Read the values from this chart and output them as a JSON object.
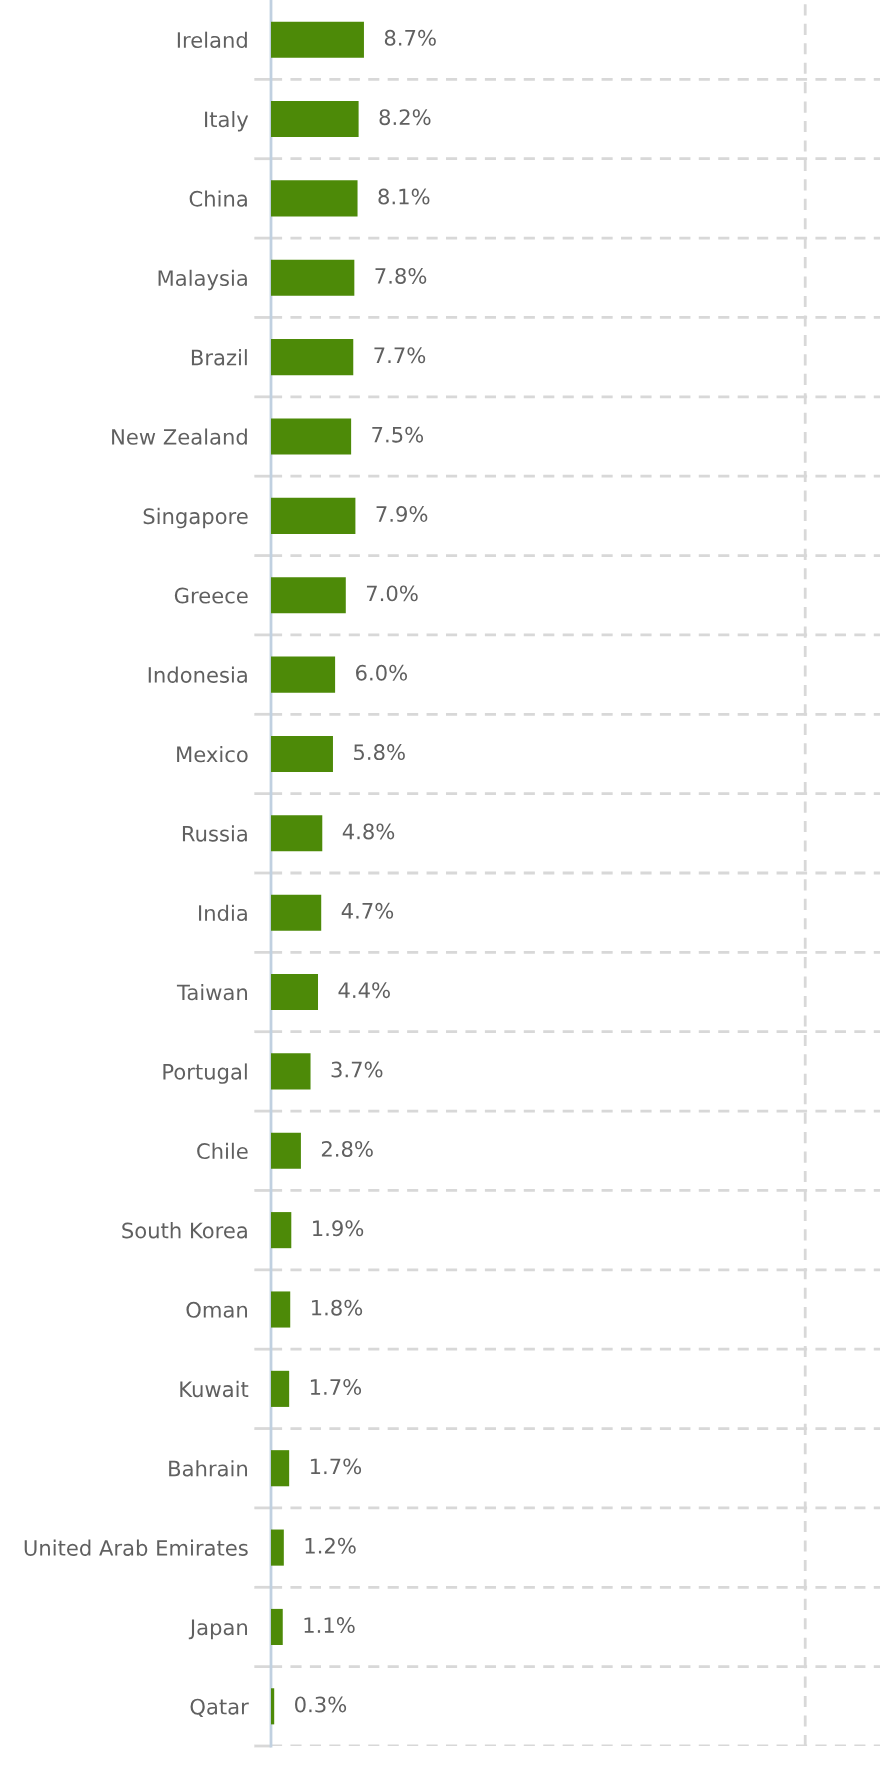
{
  "chart_data": {
    "type": "bar",
    "orientation": "horizontal",
    "categories": [
      "Ireland",
      "Italy",
      "China",
      "Malaysia",
      "Brazil",
      "New Zealand",
      "Singapore",
      "Greece",
      "Indonesia",
      "Mexico",
      "Russia",
      "India",
      "Taiwan",
      "Portugal",
      "Chile",
      "South Korea",
      "Oman",
      "Kuwait",
      "Bahrain",
      "United Arab Emirates",
      "Japan",
      "Qatar"
    ],
    "values": [
      8.7,
      8.2,
      8.1,
      7.8,
      7.7,
      7.5,
      7.9,
      7.0,
      6.0,
      5.8,
      4.8,
      4.7,
      4.4,
      3.7,
      2.8,
      1.9,
      1.8,
      1.7,
      1.7,
      1.2,
      1.1,
      0.3
    ],
    "value_labels": [
      "8.7%",
      "8.2%",
      "8.1%",
      "7.8%",
      "7.7%",
      "7.5%",
      "7.9%",
      "7.0%",
      "6.0%",
      "5.8%",
      "4.8%",
      "4.7%",
      "4.4%",
      "3.7%",
      "2.8%",
      "1.9%",
      "1.8%",
      "1.7%",
      "1.7%",
      "1.2%",
      "1.1%",
      "0.3%"
    ],
    "color": "#4d8a08",
    "xlim": [
      0,
      57
    ],
    "xticks": [
      {
        "value": 50,
        "label": null
      }
    ],
    "tick_labels": "y",
    "grid": true
  }
}
